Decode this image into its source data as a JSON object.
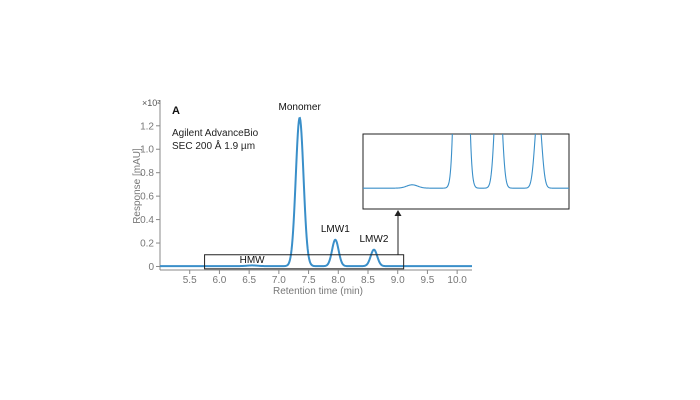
{
  "chart_data": {
    "type": "line",
    "panel_label": "A",
    "column_text_line1": "Agilent AdvanceBio",
    "column_text_line2": "SEC 200 Å 1.9 µm",
    "xlabel": "Retention time (min)",
    "ylabel": "Response [mAU]",
    "y_multiplier": "×10²",
    "xlim": [
      5.0,
      10.25
    ],
    "ylim": [
      -0.03,
      1.42
    ],
    "x_ticks": [
      5.5,
      6.0,
      6.5,
      7.0,
      7.5,
      8.0,
      8.5,
      9.0,
      9.5,
      10.0
    ],
    "x_tick_labels": [
      "5.5",
      "6.0",
      "6.5",
      "7.0",
      "7.5",
      "8.0",
      "8.5",
      "9.0",
      "9.5",
      "10.0"
    ],
    "y_ticks": [
      0,
      0.2,
      0.4,
      0.6,
      0.8,
      1.0,
      1.2
    ],
    "y_tick_labels": [
      "0",
      "0.2",
      "0.4",
      "0.6",
      "0.8",
      "1.0",
      "1.2"
    ],
    "grid": false,
    "line_color": "#3a8fc9",
    "baseline_value": 0.003,
    "peaks": [
      {
        "label": "HMW",
        "x": 6.55,
        "y": 0.006,
        "width": 0.09
      },
      {
        "label": "Monomer",
        "x": 7.35,
        "y": 1.265,
        "width": 0.065
      },
      {
        "label": "LMW1",
        "x": 7.95,
        "y": 0.225,
        "width": 0.055
      },
      {
        "label": "LMW2",
        "x": 8.6,
        "y": 0.14,
        "width": 0.055
      }
    ],
    "zoom_region": {
      "x": [
        5.75,
        9.1
      ],
      "y": [
        -0.02,
        0.1
      ]
    }
  }
}
